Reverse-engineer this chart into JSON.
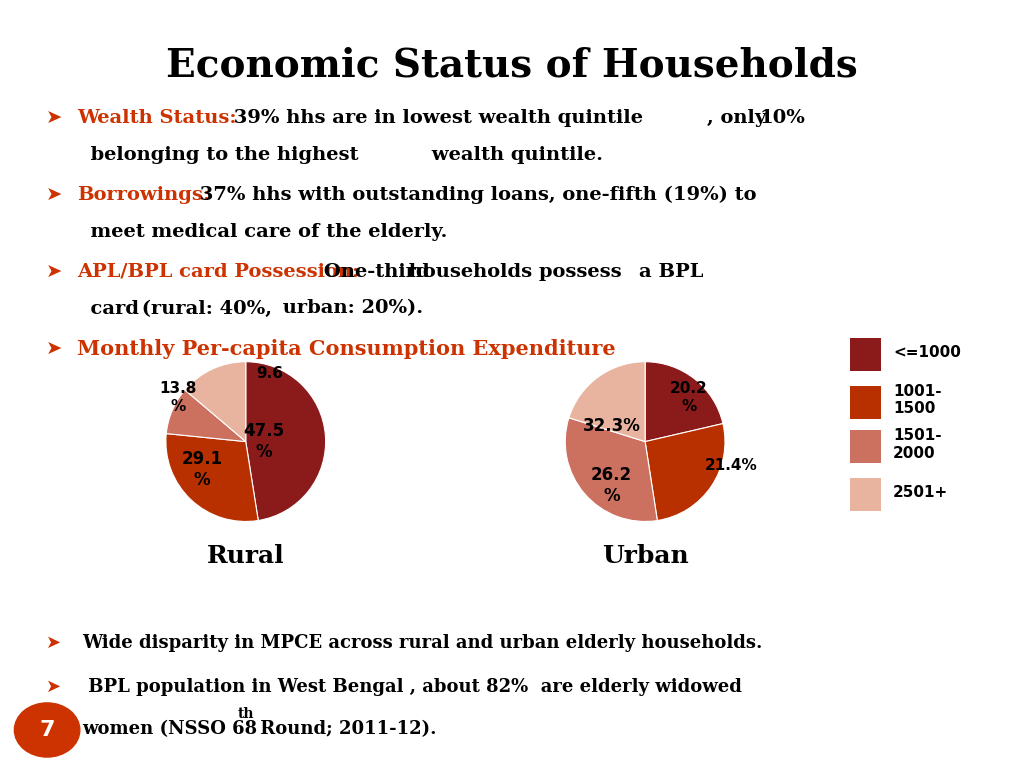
{
  "title": "Economic Status of Households",
  "bullet1_label": "Wealth Status:",
  "bullet2_label": "Borrowings:",
  "bullet3_label": "APL/BPL card Possession:",
  "bullet4_label": "Monthly Per-capita Consumption Expenditure",
  "footer1": "Wide disparity in MPCE across rural and urban elderly households.",
  "footer2_line1": " BPL population in West Bengal , about 82%  are elderly widowed",
  "footer2_line2a": "women (NSSO 68",
  "footer2_line2b": "th",
  "footer2_line2c": " Round; 2011-12).",
  "slide_number": "7",
  "rural_values": [
    47.5,
    29.1,
    9.6,
    13.8
  ],
  "urban_values": [
    21.4,
    26.2,
    32.3,
    20.2
  ],
  "pie_colors": [
    "#8B1A1A",
    "#B83000",
    "#CC7060",
    "#E8B4A0"
  ],
  "rural_label": "Rural",
  "urban_label": "Urban",
  "legend_labels": [
    "<=1000",
    "1001-\n1500",
    "1501-\n2000",
    "2501+"
  ],
  "legend_colors": [
    "#8B1A1A",
    "#B83000",
    "#CC7060",
    "#E8B4A0"
  ],
  "background_color": "#FFFFFF",
  "red_color": "#CC3300",
  "arrow": "➤"
}
